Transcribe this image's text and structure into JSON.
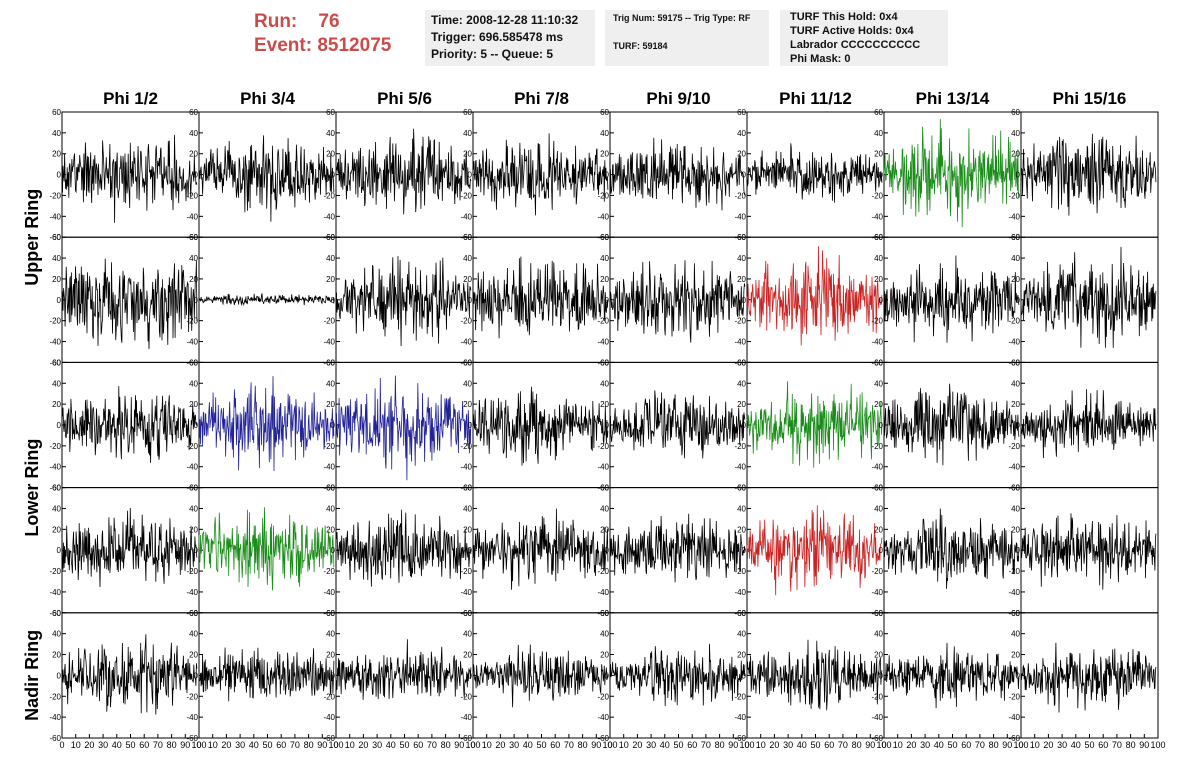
{
  "header": {
    "run_label": "Run:",
    "run_value": "76",
    "event_label": "Event:",
    "event_value": "8512075"
  },
  "info_time": {
    "time": "Time: 2008-12-28 11:10:32",
    "trigger": "Trigger: 696.585478 ms",
    "priority": "Priority: 5 -- Queue: 5"
  },
  "info_trig": {
    "trig": "Trig Num: 59175 -- Trig Type: RF",
    "turf": "TURF: 59184"
  },
  "info_turf": {
    "this_hold": "TURF This Hold: 0x4",
    "active_holds": "TURF Active Holds: 0x4",
    "labrador": "Labrador CCCCCCCCCC",
    "phi_mask": "Phi Mask: 0"
  },
  "chart_data": {
    "type": "line",
    "columns": [
      "Phi 1/2",
      "Phi 3/4",
      "Phi 5/6",
      "Phi 7/8",
      "Phi 9/10",
      "Phi 11/12",
      "Phi 13/14",
      "Phi 15/16"
    ],
    "ring_labels": [
      {
        "label": "Upper Ring",
        "rows": [
          0,
          1
        ]
      },
      {
        "label": "Lower Ring",
        "rows": [
          2,
          3
        ]
      },
      {
        "label": "Nadir Ring",
        "rows": [
          4
        ]
      }
    ],
    "ylim": [
      -60,
      60
    ],
    "yticks": [
      "-60",
      "-40",
      "-20",
      "0",
      "20",
      "40",
      "60"
    ],
    "xlim": [
      0,
      100
    ],
    "xticks": [
      "0",
      "10",
      "20",
      "30",
      "40",
      "50",
      "60",
      "70",
      "80",
      "90",
      "100"
    ],
    "samples": 260,
    "colors": {
      "default": "#000000",
      "red": "#cc2222",
      "green": "#1a8c1a",
      "blue": "#222299"
    },
    "panels": [
      [
        {
          "c": "default",
          "a": 14,
          "s": 1
        },
        {
          "c": "default",
          "a": 13,
          "s": 2
        },
        {
          "c": "default",
          "a": 14,
          "s": 3
        },
        {
          "c": "default",
          "a": 14,
          "s": 4
        },
        {
          "c": "default",
          "a": 12,
          "s": 5
        },
        {
          "c": "default",
          "a": 10,
          "s": 6
        },
        {
          "c": "green",
          "a": 16,
          "s": 7
        },
        {
          "c": "default",
          "a": 14,
          "s": 8
        }
      ],
      [
        {
          "c": "default",
          "a": 18,
          "s": 9
        },
        {
          "c": "default",
          "a": 2,
          "s": 10
        },
        {
          "c": "default",
          "a": 14,
          "s": 11
        },
        {
          "c": "default",
          "a": 14,
          "s": 12
        },
        {
          "c": "default",
          "a": 14,
          "s": 13
        },
        {
          "c": "red",
          "a": 16,
          "s": 14
        },
        {
          "c": "default",
          "a": 14,
          "s": 15
        },
        {
          "c": "default",
          "a": 16,
          "s": 16
        }
      ],
      [
        {
          "c": "default",
          "a": 13,
          "s": 17
        },
        {
          "c": "blue",
          "a": 15,
          "s": 18
        },
        {
          "c": "blue",
          "a": 16,
          "s": 19
        },
        {
          "c": "default",
          "a": 13,
          "s": 20
        },
        {
          "c": "default",
          "a": 12,
          "s": 21
        },
        {
          "c": "green",
          "a": 14,
          "s": 22
        },
        {
          "c": "default",
          "a": 14,
          "s": 23
        },
        {
          "c": "default",
          "a": 12,
          "s": 24
        }
      ],
      [
        {
          "c": "default",
          "a": 13,
          "s": 25
        },
        {
          "c": "green",
          "a": 14,
          "s": 26
        },
        {
          "c": "default",
          "a": 13,
          "s": 27
        },
        {
          "c": "default",
          "a": 12,
          "s": 28
        },
        {
          "c": "default",
          "a": 12,
          "s": 29
        },
        {
          "c": "red",
          "a": 14,
          "s": 30
        },
        {
          "c": "default",
          "a": 12,
          "s": 31
        },
        {
          "c": "default",
          "a": 14,
          "s": 32
        }
      ],
      [
        {
          "c": "default",
          "a": 13,
          "s": 33
        },
        {
          "c": "default",
          "a": 10,
          "s": 34
        },
        {
          "c": "default",
          "a": 10,
          "s": 35
        },
        {
          "c": "default",
          "a": 10,
          "s": 36
        },
        {
          "c": "default",
          "a": 10,
          "s": 37
        },
        {
          "c": "default",
          "a": 12,
          "s": 38
        },
        {
          "c": "default",
          "a": 10,
          "s": 39
        },
        {
          "c": "default",
          "a": 12,
          "s": 40
        }
      ]
    ]
  }
}
